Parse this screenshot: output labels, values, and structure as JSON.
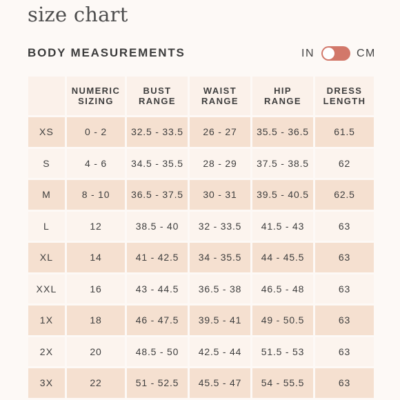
{
  "title": "size chart",
  "section_heading": "BODY MEASUREMENTS",
  "unit_toggle": {
    "left_label": "IN",
    "right_label": "CM",
    "state": "IN"
  },
  "colors": {
    "accent": "#d2786a",
    "row_shade": "#f5e0d0",
    "row_light": "#fcf4ee"
  },
  "table": {
    "headers": [
      "",
      "NUMERIC\nSIZING",
      "BUST\nRANGE",
      "WAIST\nRANGE",
      "HIP\nRANGE",
      "DRESS\nLENGTH"
    ],
    "rows": [
      [
        "XS",
        "0 - 2",
        "32.5 - 33.5",
        "26 - 27",
        "35.5 - 36.5",
        "61.5"
      ],
      [
        "S",
        "4 - 6",
        "34.5 - 35.5",
        "28 - 29",
        "37.5 - 38.5",
        "62"
      ],
      [
        "M",
        "8 - 10",
        "36.5 - 37.5",
        "30 - 31",
        "39.5 - 40.5",
        "62.5"
      ],
      [
        "L",
        "12",
        "38.5 - 40",
        "32 - 33.5",
        "41.5 - 43",
        "63"
      ],
      [
        "XL",
        "14",
        "41 - 42.5",
        "34 - 35.5",
        "44 - 45.5",
        "63"
      ],
      [
        "XXL",
        "16",
        "43 - 44.5",
        "36.5 - 38",
        "46.5 - 48",
        "63"
      ],
      [
        "1X",
        "18",
        "46 - 47.5",
        "39.5 - 41",
        "49 - 50.5",
        "63"
      ],
      [
        "2X",
        "20",
        "48.5 - 50",
        "42.5 - 44",
        "51.5 - 53",
        "63"
      ],
      [
        "3X",
        "22",
        "51 - 52.5",
        "45.5 - 47",
        "54 - 55.5",
        "63"
      ]
    ]
  }
}
